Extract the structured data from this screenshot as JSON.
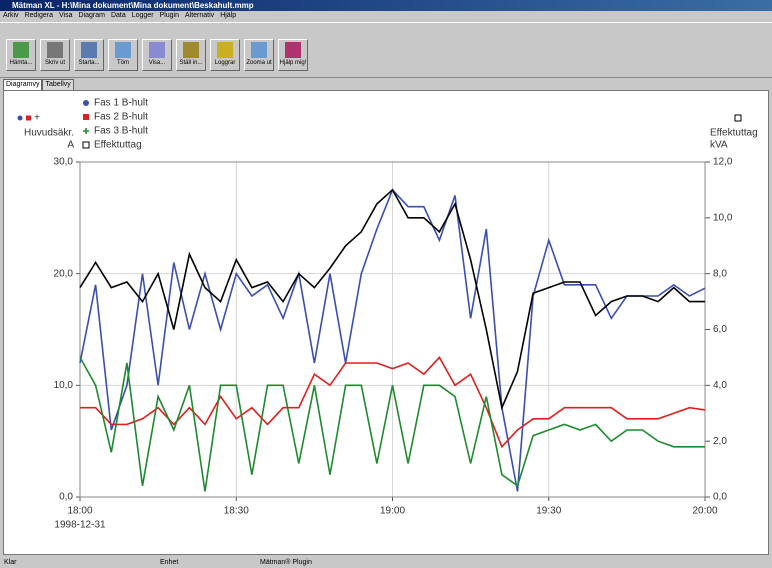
{
  "window": {
    "title": "Mätman XL - H:\\Mina dokument\\Mina dokument\\Beskahult.mmp",
    "menu": [
      "Arkiv",
      "Redigera",
      "Visa",
      "Diagram",
      "Data",
      "Logger",
      "Plugin",
      "Alternativ",
      "Hjälp"
    ],
    "toolbar": [
      "Hämta...",
      "Skriv ut",
      "Starta...",
      "Töm",
      "Visa...",
      "Ställ in...",
      "Loggrar",
      "Zooma ut",
      "Hjälp mig!"
    ],
    "tabs": [
      "Diagramvy",
      "Tabellvy"
    ],
    "status": [
      "Klar",
      "Enhet",
      "Mätman® Plugin"
    ]
  },
  "chart_data": {
    "type": "line",
    "ylabel": [
      "Huvudsäkr.",
      "A"
    ],
    "y2label": [
      "Effektuttag",
      "kVA"
    ],
    "annotation": "1998-12-31",
    "x": [
      "18:00",
      "18:03",
      "18:06",
      "18:09",
      "18:12",
      "18:15",
      "18:18",
      "18:21",
      "18:24",
      "18:27",
      "18:30",
      "18:33",
      "18:36",
      "18:39",
      "18:42",
      "18:45",
      "18:48",
      "18:51",
      "18:54",
      "18:57",
      "19:00",
      "19:03",
      "19:06",
      "19:09",
      "19:12",
      "19:15",
      "19:18",
      "19:21",
      "19:24",
      "19:27",
      "19:30",
      "19:33",
      "19:36",
      "19:39",
      "19:42",
      "19:45",
      "19:48",
      "19:51",
      "19:54",
      "19:57",
      "20:00"
    ],
    "xlim": [
      "18:00",
      "20:00"
    ],
    "xticks": [
      "18:00",
      "18:30",
      "19:00",
      "19:30",
      "20:00"
    ],
    "ylim": [
      0,
      30
    ],
    "yticks": [
      {
        "value": 0,
        "label": "0,0"
      },
      {
        "value": 10,
        "label": "10,0"
      },
      {
        "value": 20,
        "label": "20,0"
      },
      {
        "value": 30,
        "label": "30,0"
      }
    ],
    "y2lim": [
      0,
      12
    ],
    "y2ticks": [
      {
        "value": 0,
        "label": "0,0"
      },
      {
        "value": 2,
        "label": "2,0"
      },
      {
        "value": 4,
        "label": "4,0"
      },
      {
        "value": 6,
        "label": "6,0"
      },
      {
        "value": 8,
        "label": "8,0"
      },
      {
        "value": 10,
        "label": "10,0"
      },
      {
        "value": 12,
        "label": "12,0"
      }
    ],
    "grid": true,
    "series": [
      {
        "name": "Fas 1 B-hult",
        "color": "#3a4fb0",
        "marker": "circle",
        "values": [
          12,
          19,
          6,
          10,
          20,
          10,
          21,
          15,
          20,
          15,
          20,
          18,
          19,
          16,
          20,
          12,
          20,
          12,
          20,
          24,
          27.5,
          26,
          26,
          23,
          27,
          16,
          24,
          8,
          0.5,
          18,
          23,
          19,
          19,
          19,
          16,
          18,
          18,
          18,
          19,
          18,
          18.7
        ]
      },
      {
        "name": "Fas 2 B-hult",
        "color": "#e02020",
        "marker": "square",
        "values": [
          8,
          8,
          6.5,
          6.5,
          7,
          8,
          6.5,
          8,
          6.5,
          9,
          7,
          8,
          6.5,
          8,
          8,
          11,
          10,
          12,
          12,
          12,
          11.5,
          12,
          11,
          12.5,
          10,
          11,
          8,
          4.5,
          6,
          7,
          7,
          8,
          8,
          8,
          8,
          7,
          7,
          7,
          7.5,
          8,
          7.8
        ]
      },
      {
        "name": "Fas 3 B-hult",
        "color": "#1e8a2e",
        "marker": "plus",
        "values": [
          12.5,
          10,
          4,
          12,
          1,
          9,
          6,
          10,
          0.5,
          10,
          10,
          2,
          10,
          10,
          3,
          10,
          2,
          10,
          10,
          3,
          10,
          3,
          10,
          10,
          9,
          3,
          9,
          2,
          1,
          5.5,
          6,
          6.5,
          6,
          6.5,
          5,
          6,
          6,
          5,
          4.5,
          4.5,
          4.5
        ]
      },
      {
        "name": "Effektuttag",
        "color": "#000000",
        "marker": "square-open",
        "axis": "y2",
        "values": [
          7.5,
          8.4,
          7.5,
          7.7,
          7,
          8,
          6,
          8.7,
          7.5,
          7,
          8.5,
          7.5,
          7.7,
          7,
          8,
          7.5,
          8.2,
          9,
          9.5,
          10.5,
          11,
          10,
          10,
          9.5,
          10.5,
          8.5,
          6,
          3.2,
          4.5,
          7.3,
          7.5,
          7.7,
          7.7,
          6.5,
          7,
          7.2,
          7.2,
          7,
          7.5,
          7,
          7
        ]
      }
    ]
  }
}
